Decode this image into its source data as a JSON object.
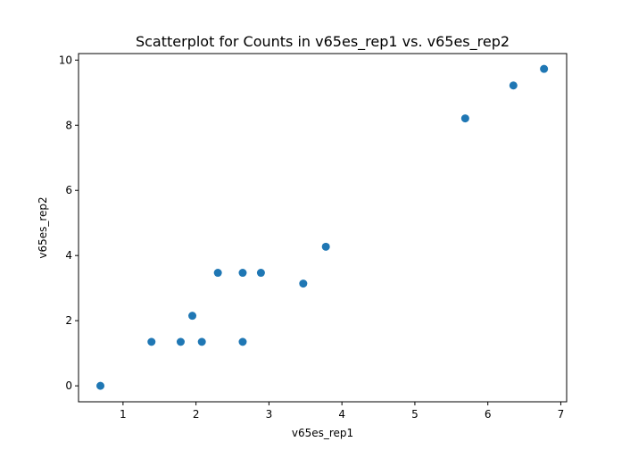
{
  "chart_data": {
    "type": "scatter",
    "title": "Scatterplot for Counts in v65es_rep1 vs. v65es_rep2",
    "xlabel": "v65es_rep1",
    "ylabel": "v65es_rep2",
    "xlim": [
      0.39,
      7.08
    ],
    "ylim": [
      -0.49,
      10.2
    ],
    "xticks": [
      1,
      2,
      3,
      4,
      5,
      6,
      7
    ],
    "yticks": [
      0,
      2,
      4,
      6,
      8,
      10
    ],
    "grid": false,
    "marker_color": "#1f77b4",
    "points": [
      {
        "x": 0.69,
        "y": 0.0
      },
      {
        "x": 1.39,
        "y": 1.35
      },
      {
        "x": 1.79,
        "y": 1.35
      },
      {
        "x": 2.08,
        "y": 1.35
      },
      {
        "x": 2.64,
        "y": 1.35
      },
      {
        "x": 1.95,
        "y": 2.15
      },
      {
        "x": 2.3,
        "y": 3.47
      },
      {
        "x": 2.64,
        "y": 3.47
      },
      {
        "x": 2.89,
        "y": 3.47
      },
      {
        "x": 3.47,
        "y": 3.14
      },
      {
        "x": 3.78,
        "y": 4.27
      },
      {
        "x": 5.69,
        "y": 8.21
      },
      {
        "x": 6.35,
        "y": 9.22
      },
      {
        "x": 6.77,
        "y": 9.73
      }
    ]
  }
}
